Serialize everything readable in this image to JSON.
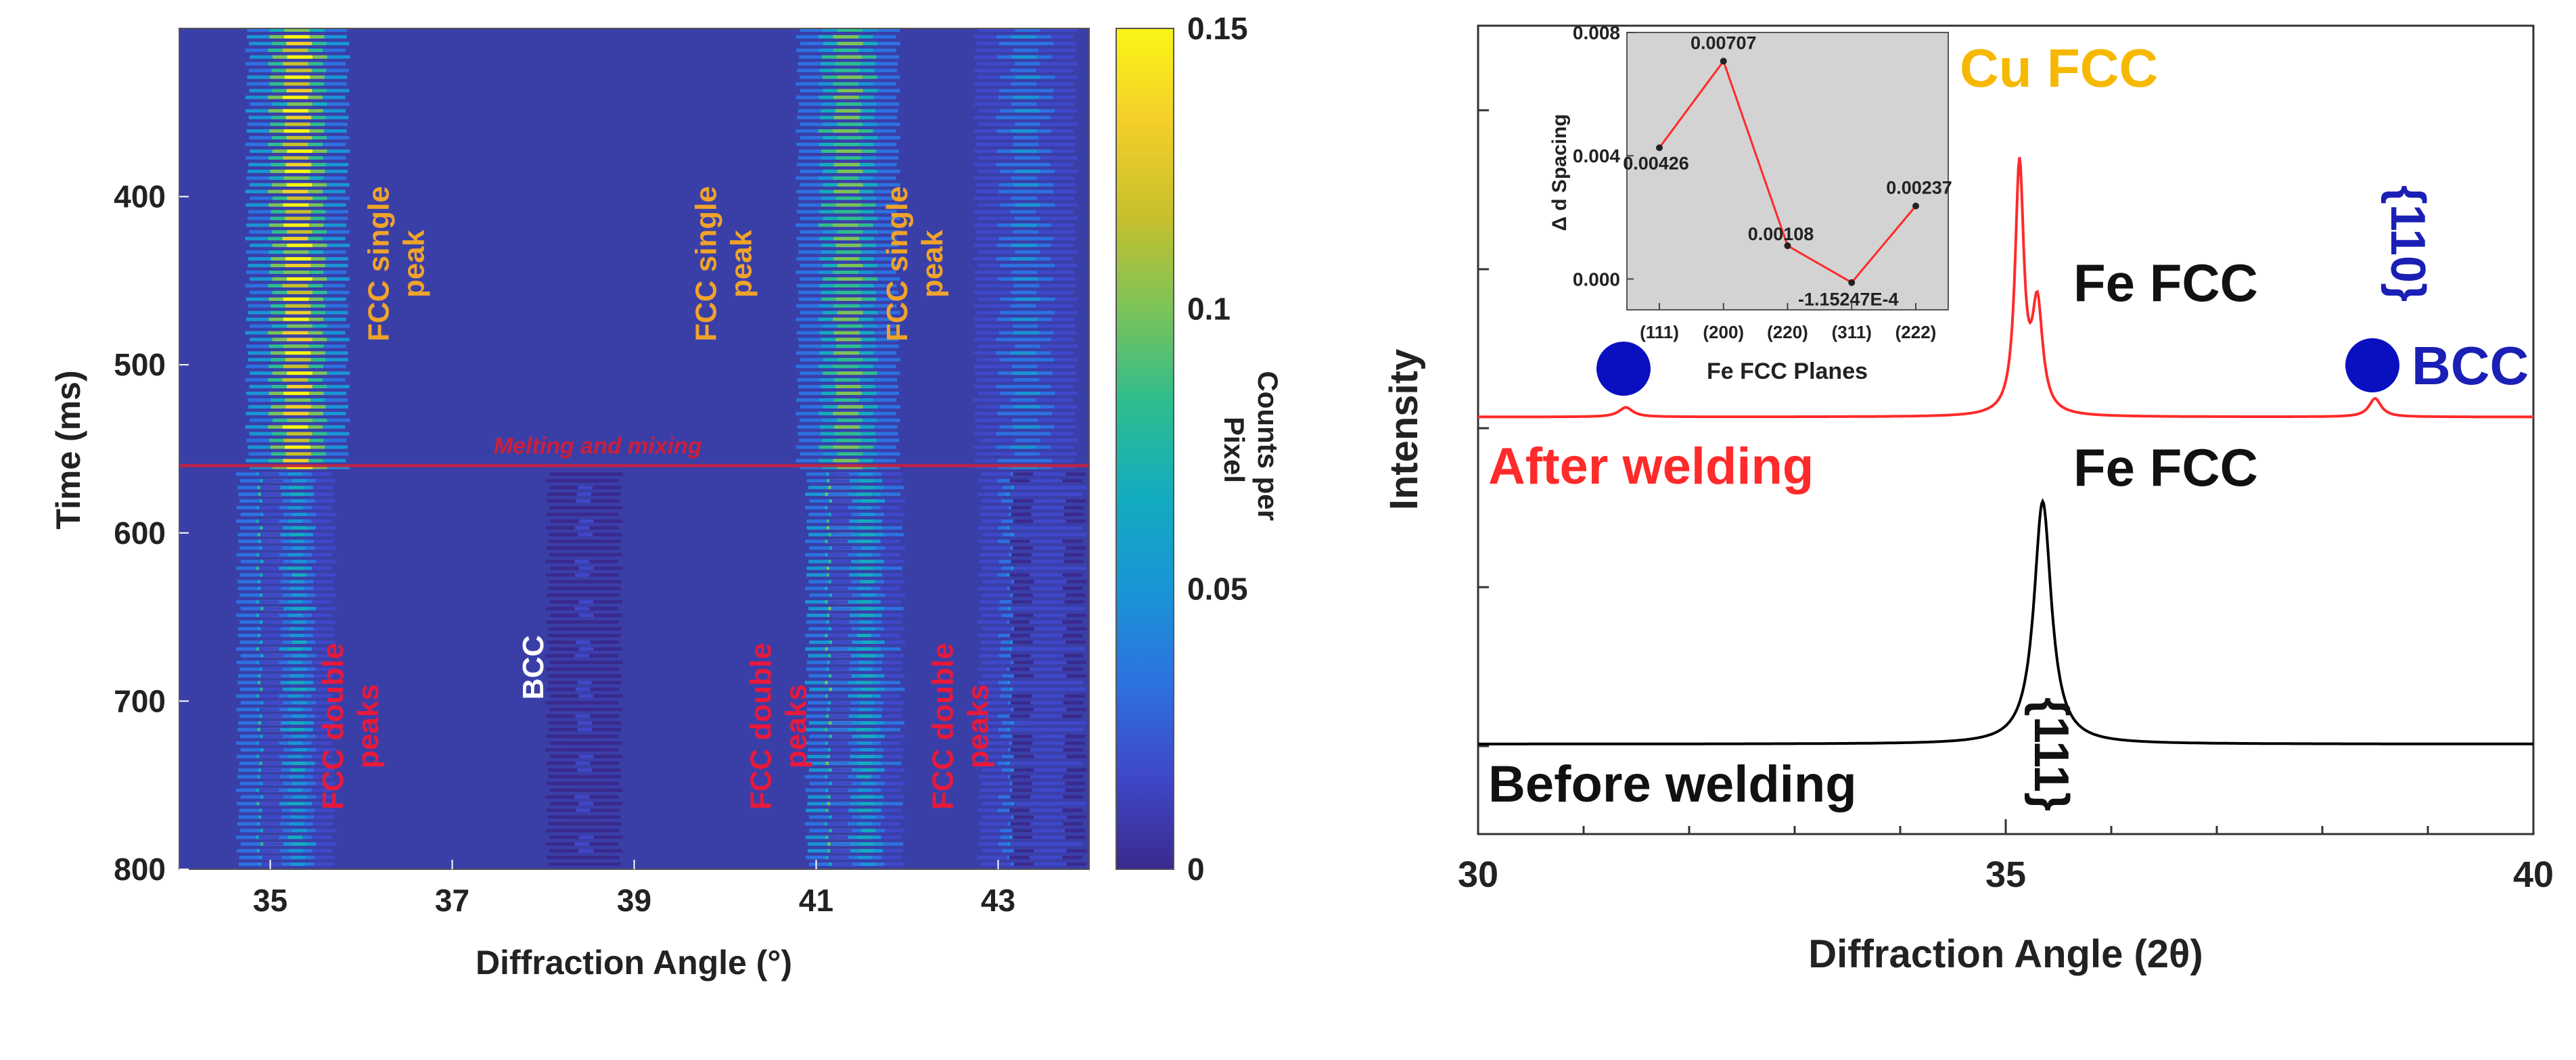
{
  "chart_data": [
    {
      "type": "heatmap",
      "xlabel": "Diffraction Angle (°)",
      "ylabel": "Time (ms)",
      "xlim": [
        34.0,
        44.0
      ],
      "ylim": [
        300,
        800
      ],
      "y_inverted": true,
      "x_ticks": [
        "35",
        "37",
        "39",
        "41",
        "43"
      ],
      "y_ticks": [
        "400",
        "500",
        "600",
        "700",
        "800"
      ],
      "colorbar": {
        "label": "Counts per Pixel",
        "range": [
          0,
          0.15
        ],
        "ticks": [
          "0",
          "0.05",
          "0.1",
          "0.15"
        ]
      },
      "colormap": [
        "#3a2a8e",
        "#3f48c9",
        "#2c72e0",
        "#1995d6",
        "#13acbf",
        "#2ebd8e",
        "#7cc358",
        "#c8c02c",
        "#f3cf2a",
        "#fbf514"
      ],
      "background_color": "#3a3fa8",
      "event_line": {
        "time": 560,
        "label": "Melting and mixing",
        "color": "#cc1f3a"
      },
      "peaks": [
        {
          "angle_before": 35.3,
          "angle_after": 35.05,
          "second_after": 35.3,
          "intensity_before": 1.0,
          "intensity_after": 0.75
        },
        {
          "angle_before": 41.35,
          "angle_after": 41.3,
          "second_after": 41.55,
          "intensity_before": 0.72,
          "intensity_after": 0.9
        },
        {
          "angle_before": 43.3,
          "angle_after": 43.2,
          "second_after": 43.55,
          "intensity_before": 0.3,
          "intensity_after": 0.3
        },
        {
          "angle_before": 38.45,
          "angle_after": 38.45,
          "second_after": 38.45,
          "intensity_before": 0.0,
          "intensity_after": 0.12
        }
      ],
      "annotations": [
        {
          "text": [
            "FCC single",
            "peak"
          ],
          "x": 36.3,
          "y": 440,
          "color": "#f0a32a"
        },
        {
          "text": [
            "FCC single",
            "peak"
          ],
          "x": 39.9,
          "y": 440,
          "color": "#f0a32a"
        },
        {
          "text": [
            "FCC single",
            "peak"
          ],
          "x": 42.0,
          "y": 440,
          "color": "#f0a32a"
        },
        {
          "text": [
            "FCC double",
            "peaks"
          ],
          "x": 35.8,
          "y": 715,
          "color": "#e8193a"
        },
        {
          "text": [
            "BCC"
          ],
          "x": 38.0,
          "y": 680,
          "color": "#ffffff"
        },
        {
          "text": [
            "FCC double",
            "peaks"
          ],
          "x": 40.5,
          "y": 715,
          "color": "#e8193a"
        },
        {
          "text": [
            "FCC double",
            "peaks"
          ],
          "x": 42.5,
          "y": 715,
          "color": "#e8193a"
        }
      ]
    },
    {
      "type": "line",
      "xlabel": "Diffraction Angle (2θ)",
      "ylabel": "Intensity",
      "xlim": [
        30,
        40
      ],
      "x_ticks": [
        "30",
        "35",
        "40"
      ],
      "series": [
        {
          "name": "After welding",
          "color": "#ff2a2a",
          "baseline": 0.62,
          "peaks": [
            {
              "center": 35.13,
              "height": 0.47,
              "width": 0.05
            },
            {
              "center": 35.3,
              "height": 0.2,
              "width": 0.06
            },
            {
              "center": 31.4,
              "height": 0.018,
              "width": 0.08
            },
            {
              "center": 38.5,
              "height": 0.035,
              "width": 0.07
            }
          ]
        },
        {
          "name": "Before welding",
          "color": "#000000",
          "baseline": 0.0,
          "peaks": [
            {
              "center": 35.35,
              "height": 0.46,
              "width": 0.1
            }
          ]
        }
      ],
      "annotations": {
        "cu_fcc": {
          "text": "Cu FCC",
          "color": "#f6b800"
        },
        "fe_fcc_after": {
          "text": "Fe FCC",
          "color": "#111111"
        },
        "fe_fcc_before": {
          "text": "Fe FCC",
          "color": "#111111"
        },
        "plane_110": {
          "text": "{110}",
          "color": "#1a1fb5"
        },
        "bcc": {
          "text": "BCC",
          "color": "#1a1fb5"
        },
        "plane_111": {
          "text": "{111}",
          "color": "#111111"
        },
        "marker_color": "#0a10c0"
      }
    },
    {
      "type": "line",
      "inset": true,
      "xlabel": "Fe FCC Planes",
      "ylabel": "Δ d Spacing",
      "categories": [
        "(111)",
        "(200)",
        "(220)",
        "(311)",
        "(222)"
      ],
      "values": [
        0.00426,
        0.00707,
        0.00108,
        -0.000115247,
        0.00237
      ],
      "value_labels": [
        "0.00426",
        "0.00707",
        "0.00108",
        "-1.15247E-4",
        "0.00237"
      ],
      "ylim": [
        -0.001,
        0.008
      ],
      "y_ticks": [
        0.0,
        0.004,
        0.008
      ],
      "y_tick_labels": [
        "0.000",
        "0.004",
        "0.008"
      ],
      "color": "#ff2a2a",
      "background_color": "#d3d3d3"
    }
  ]
}
